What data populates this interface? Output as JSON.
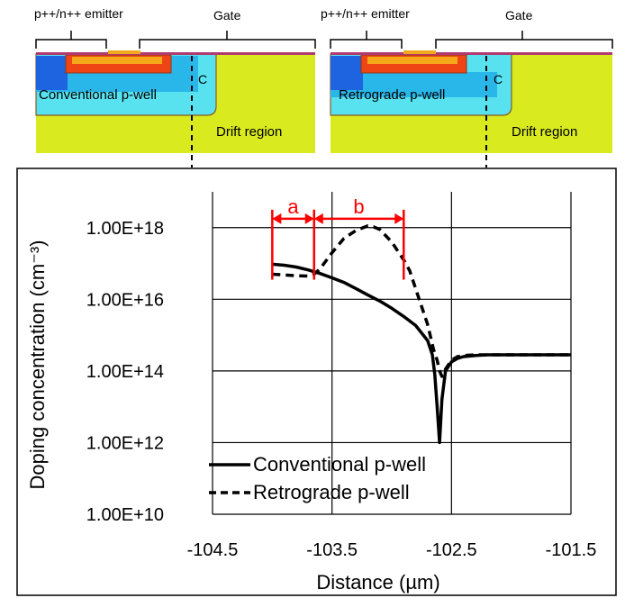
{
  "schematics": {
    "left": {
      "emitter_label": "p++/n++ emitter",
      "gate_label": "Gate",
      "pwell_label": "Conventional p-well",
      "c_label": "C",
      "drift_label": "Drift region"
    },
    "right": {
      "emitter_label": "p++/n++ emitter",
      "gate_label": "Gate",
      "pwell_label": "Retrograde p-well",
      "c_label": "C",
      "drift_label": "Drift region"
    }
  },
  "colors": {
    "drift": "#d9ea1e",
    "pwell_light": "#58e2f0",
    "pwell_mid": "#29b6e8",
    "pwell_deep": "#1e63e0",
    "emitter": "#ef4413",
    "emitter_inner": "#f6a81a",
    "gate": "#f2a91e",
    "surface_line": "#b03a6f",
    "annotation_red": "#ff0000",
    "curve": "#000000"
  },
  "chart_data": {
    "type": "line",
    "title": "",
    "xlabel": "Distance (µm)",
    "ylabel": "Doping concentration (cm⁻³)",
    "xlim": [
      -104.5,
      -101.5
    ],
    "yscale": "log",
    "ylim_log10": [
      10,
      19
    ],
    "x_ticks": [
      -104.5,
      -103.5,
      -102.5,
      -101.5
    ],
    "x_tick_labels": [
      "-104.5",
      "-103.5",
      "-102.5",
      "-101.5"
    ],
    "y_ticks_log10": [
      10,
      12,
      14,
      16,
      18
    ],
    "y_tick_labels": [
      "1.00E+10",
      "1.00E+12",
      "1.00E+14",
      "1.00E+16",
      "1.00E+18"
    ],
    "grid": true,
    "legend_position": "bottom-left",
    "series": [
      {
        "name": "Conventional p-well",
        "style": "solid",
        "x": [
          -104.0,
          -103.9,
          -103.8,
          -103.7,
          -103.6,
          -103.5,
          -103.4,
          -103.3,
          -103.2,
          -103.1,
          -103.0,
          -102.9,
          -102.8,
          -102.7,
          -102.66,
          -102.64,
          -102.62,
          -102.6,
          -102.58,
          -102.55,
          -102.5,
          -102.45,
          -102.4,
          -102.3,
          -102.2,
          -102.0,
          -101.75,
          -101.5
        ],
        "log10_y": [
          16.98,
          16.95,
          16.9,
          16.82,
          16.72,
          16.6,
          16.47,
          16.3,
          16.12,
          15.95,
          15.75,
          15.52,
          15.27,
          14.85,
          14.45,
          13.9,
          13.0,
          12.0,
          13.2,
          14.0,
          14.25,
          14.35,
          14.4,
          14.43,
          14.45,
          14.45,
          14.45,
          14.45
        ]
      },
      {
        "name": "Retrograde p-well",
        "style": "dashed",
        "x": [
          -104.0,
          -103.9,
          -103.8,
          -103.7,
          -103.65,
          -103.6,
          -103.5,
          -103.4,
          -103.3,
          -103.2,
          -103.15,
          -103.1,
          -103.0,
          -102.9,
          -102.85,
          -102.8,
          -102.7,
          -102.65,
          -102.62,
          -102.6,
          -102.58,
          -102.55,
          -102.5,
          -102.45,
          -102.4,
          -102.3,
          -102.2,
          -102.0,
          -101.75,
          -101.5
        ],
        "log10_y": [
          16.7,
          16.68,
          16.66,
          16.65,
          16.7,
          16.85,
          17.3,
          17.7,
          17.92,
          18.05,
          18.02,
          17.95,
          17.6,
          17.1,
          16.8,
          16.3,
          15.3,
          14.6,
          14.3,
          14.0,
          13.85,
          14.05,
          14.3,
          14.4,
          14.43,
          14.45,
          14.45,
          14.45,
          14.45,
          14.45
        ]
      }
    ],
    "annotations": [
      {
        "text": "a",
        "x_start": -104.0,
        "x_end": -103.65
      },
      {
        "text": "b",
        "x_start": -103.65,
        "x_end": -102.9
      }
    ]
  }
}
